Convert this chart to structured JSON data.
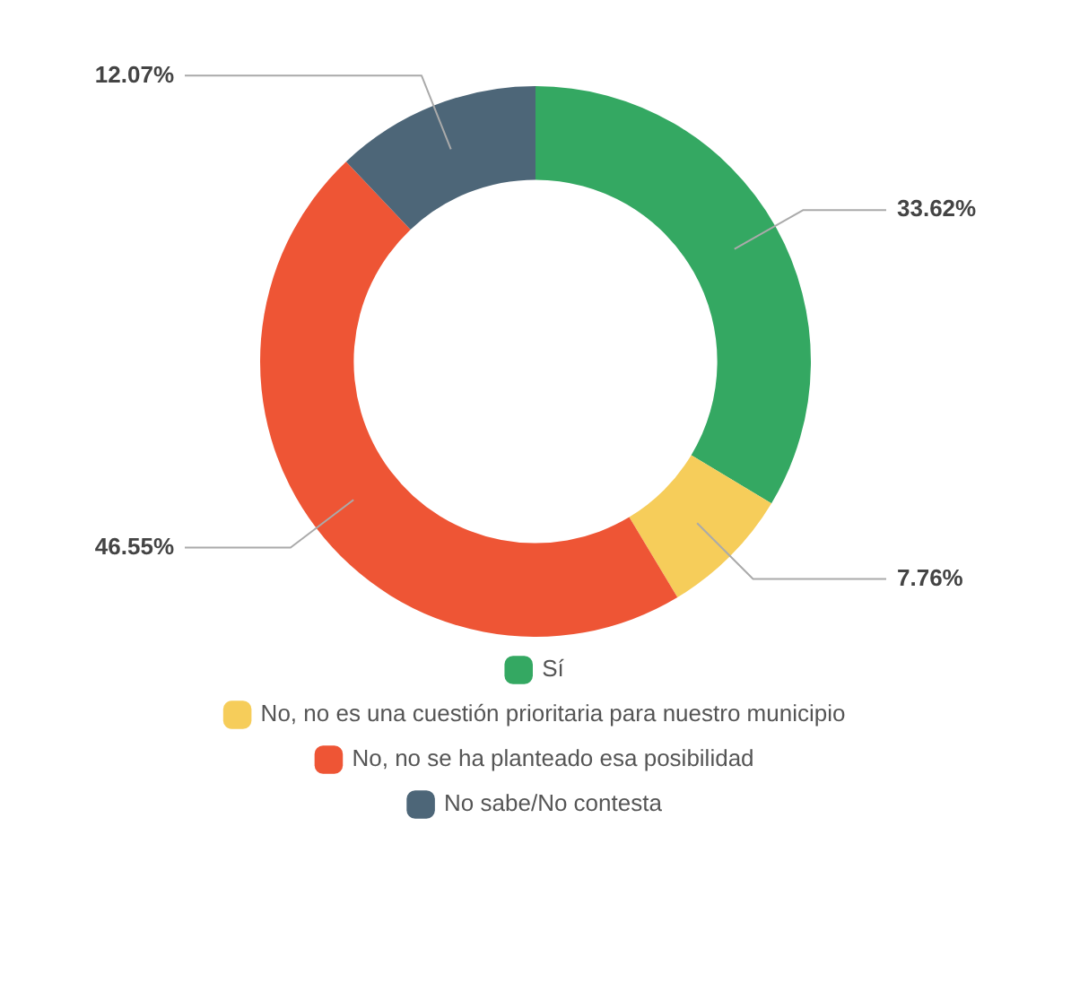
{
  "chart_data": {
    "type": "donut",
    "categories": [
      "Sí",
      "No, no es una cuestión prioritaria para nuestro municipio",
      "No, no se ha planteado esa posibilidad",
      "No sabe/No contesta"
    ],
    "values": [
      33.62,
      7.76,
      46.55,
      12.07
    ],
    "value_labels": [
      "33.62%",
      "7.76%",
      "46.55%",
      "12.07%"
    ],
    "colors": [
      "#34a862",
      "#f6cd5a",
      "#ee5535",
      "#4d6678"
    ],
    "legend": "bottom"
  }
}
